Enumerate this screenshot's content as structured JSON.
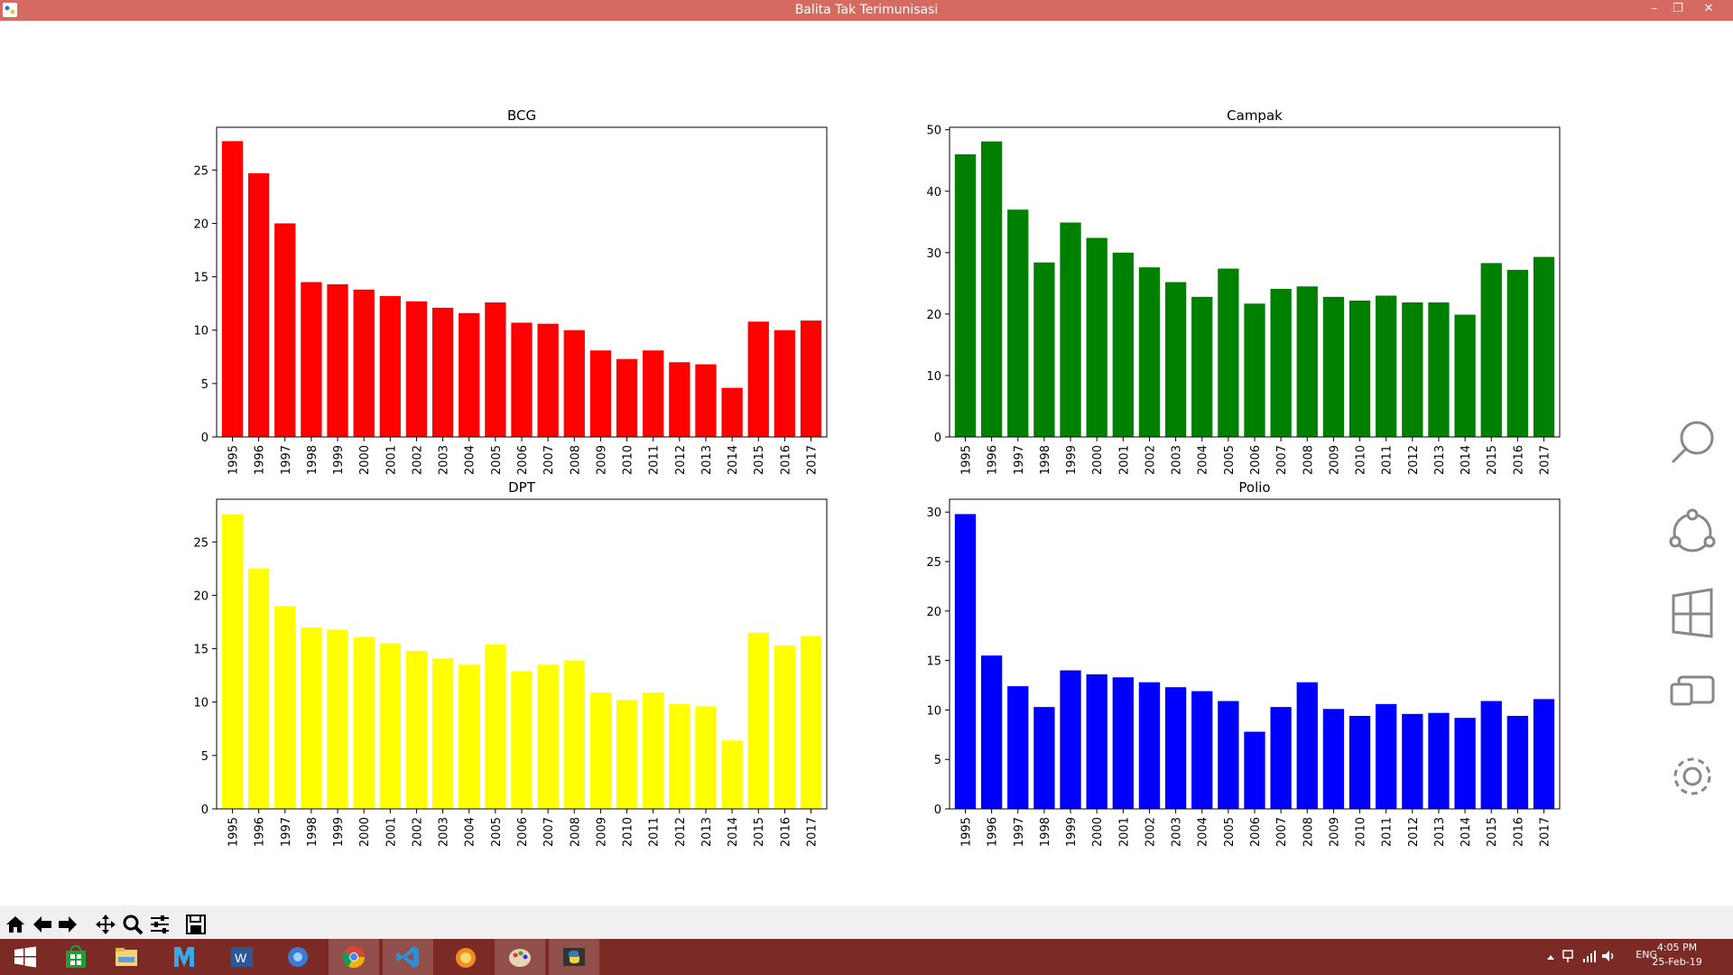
{
  "window": {
    "title": "Balita Tak Terimunisasi",
    "minimize": "–",
    "restore": "❐",
    "close": "✕"
  },
  "chart_data": [
    {
      "type": "bar",
      "title": "BCG",
      "color": "#ff0000",
      "categories": [
        "1995",
        "1996",
        "1997",
        "1998",
        "1999",
        "2000",
        "2001",
        "2002",
        "2003",
        "2004",
        "2005",
        "2006",
        "2007",
        "2008",
        "2009",
        "2010",
        "2011",
        "2012",
        "2013",
        "2014",
        "2015",
        "2016",
        "2017"
      ],
      "values": [
        27.7,
        24.7,
        20.0,
        14.5,
        14.3,
        13.8,
        13.2,
        12.7,
        12.1,
        11.6,
        12.6,
        10.7,
        10.6,
        10.0,
        8.1,
        7.3,
        8.1,
        7.0,
        6.8,
        4.6,
        10.8,
        10.0,
        10.9
      ],
      "yticks": [
        0,
        5,
        10,
        15,
        20,
        25
      ],
      "ylim": [
        0,
        29
      ]
    },
    {
      "type": "bar",
      "title": "Campak",
      "color": "#008000",
      "categories": [
        "1995",
        "1996",
        "1997",
        "1998",
        "1999",
        "2000",
        "2001",
        "2002",
        "2003",
        "2004",
        "2005",
        "2006",
        "2007",
        "2008",
        "2009",
        "2010",
        "2011",
        "2012",
        "2013",
        "2014",
        "2015",
        "2016",
        "2017"
      ],
      "values": [
        46.0,
        48.1,
        37.0,
        28.4,
        34.9,
        32.4,
        30.0,
        27.6,
        25.2,
        22.8,
        27.4,
        21.7,
        24.1,
        24.5,
        22.8,
        22.2,
        23.0,
        21.9,
        21.9,
        19.9,
        28.3,
        27.2,
        29.3
      ],
      "yticks": [
        0,
        10,
        20,
        30,
        40,
        50
      ],
      "ylim": [
        0,
        50.4
      ]
    },
    {
      "type": "bar",
      "title": "DPT",
      "color": "#ffff00",
      "categories": [
        "1995",
        "1996",
        "1997",
        "1998",
        "1999",
        "2000",
        "2001",
        "2002",
        "2003",
        "2004",
        "2005",
        "2006",
        "2007",
        "2008",
        "2009",
        "2010",
        "2011",
        "2012",
        "2013",
        "2014",
        "2015",
        "2016",
        "2017"
      ],
      "values": [
        27.6,
        22.5,
        19.0,
        17.0,
        16.8,
        16.1,
        15.5,
        14.8,
        14.1,
        13.5,
        15.4,
        12.9,
        13.5,
        13.9,
        10.9,
        10.2,
        10.9,
        9.8,
        9.6,
        6.4,
        16.5,
        15.3,
        16.2
      ],
      "yticks": [
        0,
        5,
        10,
        15,
        20,
        25
      ],
      "ylim": [
        0,
        29
      ]
    },
    {
      "type": "bar",
      "title": "Polio",
      "color": "#0000ff",
      "categories": [
        "1995",
        "1996",
        "1997",
        "1998",
        "1999",
        "2000",
        "2001",
        "2002",
        "2003",
        "2004",
        "2005",
        "2006",
        "2007",
        "2008",
        "2009",
        "2010",
        "2011",
        "2012",
        "2013",
        "2014",
        "2015",
        "2016",
        "2017"
      ],
      "values": [
        29.8,
        15.5,
        12.4,
        10.3,
        14.0,
        13.6,
        13.3,
        12.8,
        12.3,
        11.9,
        10.9,
        7.8,
        10.3,
        12.8,
        10.1,
        9.4,
        10.6,
        9.6,
        9.7,
        9.2,
        10.9,
        9.4,
        11.1
      ],
      "yticks": [
        0,
        5,
        10,
        15,
        20,
        25,
        30
      ],
      "ylim": [
        0,
        31.3
      ]
    }
  ],
  "charms": [
    "search-icon",
    "share-icon",
    "start-icon",
    "devices-icon",
    "settings-icon"
  ],
  "toolbar": [
    "home-icon",
    "back-icon",
    "forward-icon",
    "pan-icon",
    "zoom-icon",
    "configure-icon",
    "save-icon"
  ],
  "taskbar": {
    "apps": [
      "start",
      "store",
      "file-explorer",
      "movie-maker",
      "word",
      "firefox-like",
      "chrome",
      "visual-studio-code",
      "ie-like",
      "paint",
      "python"
    ],
    "tray": {
      "lang": "ENG",
      "time": "4:05 PM",
      "date": "25-Feb-19"
    }
  }
}
